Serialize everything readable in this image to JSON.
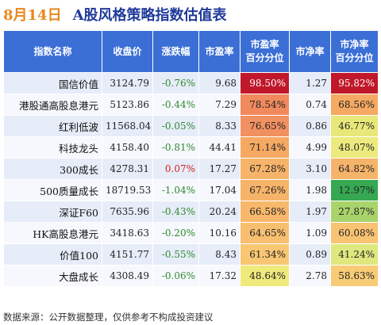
{
  "header": {
    "date": "8月14日",
    "title": "A股风格策略指数估值表"
  },
  "table": {
    "columns": [
      "指数名称",
      "收盘价",
      "涨跌幅",
      "市盈率",
      "市盈率\n百分分位",
      "市净率",
      "市净率\n百分分位"
    ],
    "rows": [
      {
        "name": "国信价值",
        "close": "3124.79",
        "change": "-0.76%",
        "pe": "9.68",
        "pe_pct": "98.50%",
        "pb": "1.27",
        "pb_pct": "95.82%",
        "pe_color": "#c0182a",
        "pb_color": "#c0182a",
        "pe_text": "#ffffff",
        "pb_text": "#ffffff",
        "change_dir": "neg"
      },
      {
        "name": "港股通高股息港元",
        "close": "5123.86",
        "change": "-0.44%",
        "pe": "7.29",
        "pe_pct": "78.54%",
        "pb": "0.74",
        "pb_pct": "68.56%",
        "pe_color": "#f08a5d",
        "pb_color": "#f5a962",
        "pe_text": "#222222",
        "pb_text": "#222222",
        "change_dir": "neg"
      },
      {
        "name": "红利低波",
        "close": "11568.04",
        "change": "-0.05%",
        "pe": "8.33",
        "pe_pct": "76.65%",
        "pb": "0.86",
        "pb_pct": "46.77%",
        "pe_color": "#f19060",
        "pb_color": "#e8e87a",
        "pe_text": "#222222",
        "pb_text": "#222222",
        "change_dir": "neg"
      },
      {
        "name": "科技龙头",
        "close": "4158.40",
        "change": "-0.81%",
        "pe": "44.41",
        "pe_pct": "71.14%",
        "pb": "4.99",
        "pb_pct": "48.07%",
        "pe_color": "#f5a962",
        "pb_color": "#ecea7e",
        "pe_text": "#222222",
        "pb_text": "#222222",
        "change_dir": "neg"
      },
      {
        "name": "300成长",
        "close": "4278.31",
        "change": "0.07%",
        "pe": "17.27",
        "pe_pct": "67.28%",
        "pb": "3.10",
        "pb_pct": "64.82%",
        "pe_color": "#f6b46a",
        "pb_color": "#f6b46a",
        "pe_text": "#222222",
        "pb_text": "#222222",
        "change_dir": "pos"
      },
      {
        "name": "500质量成长",
        "close": "18719.53",
        "change": "-1.04%",
        "pe": "17.04",
        "pe_pct": "67.26%",
        "pb": "1.98",
        "pb_pct": "12.97%",
        "pe_color": "#f6b46a",
        "pb_color": "#36a852",
        "pe_text": "#222222",
        "pb_text": "#222222",
        "change_dir": "neg"
      },
      {
        "name": "深证F60",
        "close": "7635.96",
        "change": "-0.43%",
        "pe": "20.24",
        "pe_pct": "66.58%",
        "pb": "1.97",
        "pb_pct": "27.87%",
        "pe_color": "#f7b86c",
        "pb_color": "#a9d36b",
        "pe_text": "#222222",
        "pb_text": "#222222",
        "change_dir": "neg"
      },
      {
        "name": "HK高股息港元",
        "close": "3418.63",
        "change": "-0.20%",
        "pe": "10.16",
        "pe_pct": "64.65%",
        "pb": "1.09",
        "pb_pct": "60.08%",
        "pe_color": "#f8bf70",
        "pb_color": "#f8c372",
        "pe_text": "#222222",
        "pb_text": "#222222",
        "change_dir": "neg"
      },
      {
        "name": "价值100",
        "close": "4151.77",
        "change": "-0.55%",
        "pe": "8.43",
        "pe_pct": "61.34%",
        "pb": "0.89",
        "pb_pct": "41.24%",
        "pe_color": "#f9c673",
        "pb_color": "#dfe87e",
        "pe_text": "#222222",
        "pb_text": "#222222",
        "change_dir": "neg"
      },
      {
        "name": "大盘成长",
        "close": "4308.49",
        "change": "-0.06%",
        "pe": "17.32",
        "pe_pct": "48.64%",
        "pb": "2.78",
        "pb_pct": "58.63%",
        "pe_color": "#f0e97c",
        "pb_color": "#f8cb76",
        "pe_text": "#222222",
        "pb_text": "#222222",
        "change_dir": "neg"
      }
    ]
  },
  "footer": "数据来源：公开数据整理，仅供参考不构成投资建议"
}
